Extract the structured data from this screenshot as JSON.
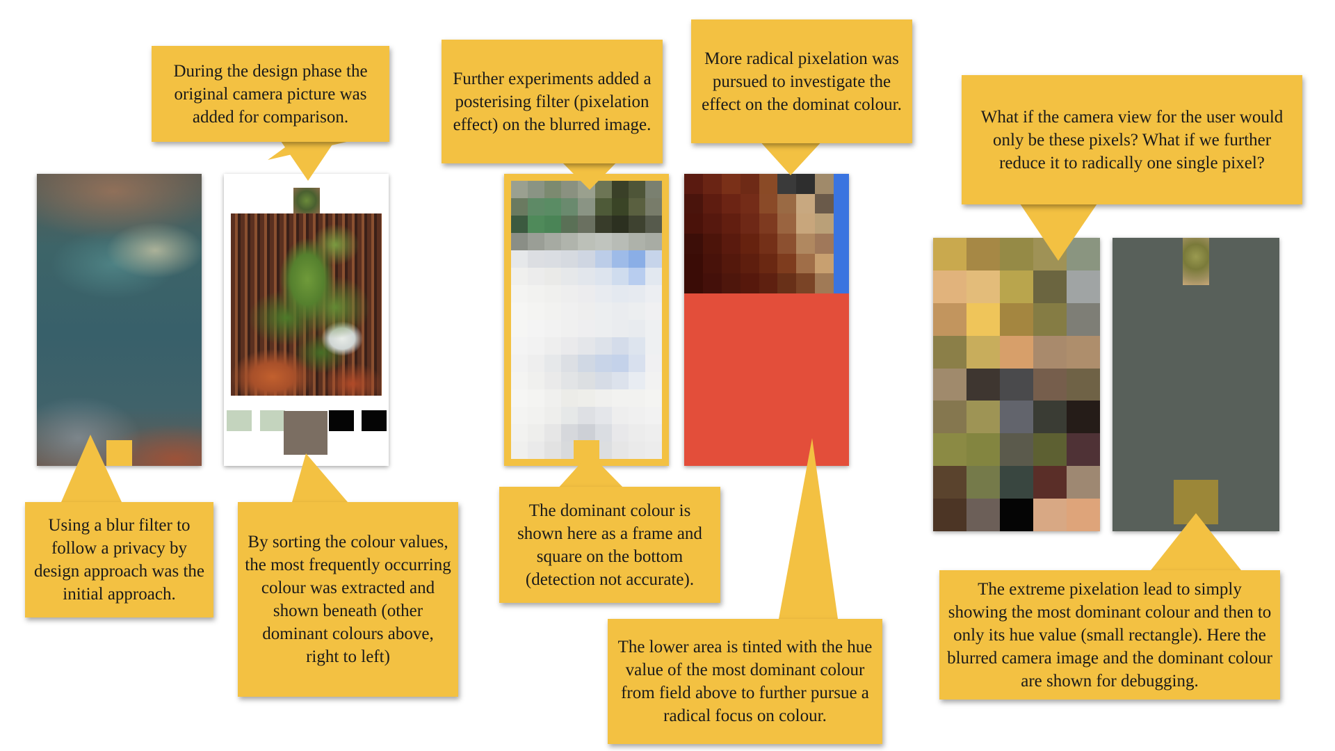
{
  "callouts": {
    "blur_filter": "Using a blur filter to follow a privacy by design approach was the initial approach.",
    "original_picture": "During the design phase the original camera picture was added for comparison.",
    "sorting_colours": "By sorting the colour values, the most frequently occurring colour was extracted and shown beneath (other dominant colours above, right to left)",
    "posterising": "Further experiments added a posterising filter (pixelation effect) on the blurred image.",
    "dominant_frame": "The dominant colour is shown here as a frame and square on the bottom (detection not accurate).",
    "radical_pixelation": "More radical pixelation was pursued to investigate the effect on the dominat colour.",
    "lower_area": "The lower area is tinted with the hue value of the most dominant colour from  field above to further pursue a radical focus on colour.",
    "single_pixel": "What if the camera view for the user would only be these pixels? What if we further reduce it to radically one single pixel?",
    "extreme_pixelation": "The extreme pixelation lead to simply showing the most dominant colour and then to only its hue value (small rectangle). Here the blurred camera image and the dominant colour are shown for debugging."
  },
  "colors": {
    "callout_bg": "#f3c142",
    "dominant_yellow": "#f3c142",
    "tint_red": "#e34e3a",
    "debug_grey": "#58605a",
    "debug_hue": "#9c8738",
    "side_blue": "#3a74e0"
  },
  "swatches": {
    "screen2": [
      "#c4d4be",
      "#c4d4be",
      "#7b6e62",
      "#050505",
      "#050505"
    ]
  },
  "grids": {
    "posterised": {
      "cols": 9,
      "rows": 16,
      "pixels": [
        "#9aa090",
        "#8a9484",
        "#7c8a70",
        "#8a9180",
        "#9aa08e",
        "#6d7555",
        "#3a4028",
        "#4e5538",
        "#7a8070",
        "#6a7a60",
        "#5e8a66",
        "#5a8c64",
        "#6a8a6e",
        "#8a9484",
        "#4e5a38",
        "#3a4426",
        "#5a6040",
        "#787c6a",
        "#3c5a40",
        "#4f8a5a",
        "#4a8456",
        "#5a7056",
        "#6a7060",
        "#383c2a",
        "#2c3020",
        "#3e4230",
        "#565a4c",
        "#8a8e86",
        "#9a9e96",
        "#a6aaa2",
        "#b0b4ac",
        "#bcc0b8",
        "#c0c4be",
        "#b8bcb6",
        "#aeb2aa",
        "#a8aca4",
        "#e6e8ea",
        "#dcdee2",
        "#dadde2",
        "#d6dae0",
        "#cfd6e2",
        "#bccde8",
        "#9ebbe8",
        "#8aaee6",
        "#c6d4ea",
        "#f0f0ee",
        "#ececec",
        "#eaeae8",
        "#e6e8ea",
        "#e2e6ec",
        "#dde4ee",
        "#cfdcee",
        "#b8cdef",
        "#e2e8f0",
        "#f4f4f2",
        "#f2f2f0",
        "#f0f0ee",
        "#eeeeee",
        "#ececee",
        "#e8ebf0",
        "#e4e9f0",
        "#e6eaf0",
        "#eceef2",
        "#f6f6f4",
        "#f4f4f2",
        "#f2f2f0",
        "#f0f0f0",
        "#eeeeee",
        "#eceef0",
        "#eaecef",
        "#eceef0",
        "#f0f0f2",
        "#f6f6f4",
        "#f4f4f4",
        "#f2f2f2",
        "#f0f0f0",
        "#eeeef0",
        "#eceef0",
        "#eaecef",
        "#e8ebef",
        "#eef0f2",
        "#f4f4f4",
        "#f2f2f2",
        "#eeeeee",
        "#eaeaec",
        "#e4e6ea",
        "#dde2ea",
        "#d4dcea",
        "#dde4ee",
        "#eef0f2",
        "#f2f2f2",
        "#eeeeee",
        "#e6e8ea",
        "#dcdfe4",
        "#d0d8e4",
        "#c8d4e8",
        "#c4d2ea",
        "#d8e0ee",
        "#f0f0f2",
        "#f4f4f2",
        "#f0f0ee",
        "#eaeaea",
        "#e2e4e6",
        "#dcdfe2",
        "#d6dce6",
        "#dce2ec",
        "#e8ecf2",
        "#f2f2f2",
        "#f6f6f4",
        "#f4f4f2",
        "#f0f0ee",
        "#ecece8",
        "#eeeeea",
        "#f0f0ee",
        "#f2f2f0",
        "#f2f2f0",
        "#f4f4f2",
        "#f4f4f2",
        "#f2f2f0",
        "#eeeeec",
        "#e6e8e8",
        "#dee0e4",
        "#e4e6ea",
        "#eeeeee",
        "#f0f0f0",
        "#f2f2f2",
        "#f2f2f0",
        "#eeeeec",
        "#e6e6e6",
        "#d6d8dc",
        "#cdd0d6",
        "#dadde2",
        "#e8e8ea",
        "#ececec",
        "#eeeeee",
        "#f0f0ee",
        "#eaeaea",
        "#e2e2e2",
        "#d8dadc",
        "#d0d2d6",
        "#dcdee0",
        "#e6e6e6",
        "#eaeaea",
        "#ececec"
      ]
    },
    "radical": {
      "cols": 8,
      "rows": 6,
      "pixels": [
        "#5a1a10",
        "#6a2414",
        "#7a3018",
        "#6e2a16",
        "#8a4a26",
        "#3a3a3a",
        "#2e2e2e",
        "#a08a6a",
        "#4a140c",
        "#5e1c10",
        "#6c2414",
        "#742c18",
        "#8a4a28",
        "#9a6a44",
        "#c8a880",
        "#6a5a4a",
        "#4a120a",
        "#56180e",
        "#621e10",
        "#6e2816",
        "#7e3a20",
        "#9a6440",
        "#c8a67c",
        "#baa078",
        "#3c0e08",
        "#4c140a",
        "#5a1a0e",
        "#66220f",
        "#743018",
        "#8c5030",
        "#b08860",
        "#a0785a",
        "#3a0c06",
        "#48120a",
        "#54180c",
        "#5e1e0e",
        "#6a2812",
        "#7e3c1e",
        "#a06e48",
        "#c8a070",
        "#3a0c06",
        "#44100a",
        "#4e160c",
        "#56180c",
        "#5e2010",
        "#683018",
        "#7a4426",
        "#a07a56"
      ]
    },
    "single": {
      "cols": 5,
      "rows": 9,
      "pixels": [
        "#c9a94e",
        "#a68845",
        "#958a46",
        "#9f9256",
        "#8a9580",
        "#e1b37c",
        "#e3bc7a",
        "#b9a54d",
        "#6b6540",
        "#a0a4a4",
        "#c2955e",
        "#efc55a",
        "#a48640",
        "#857c44",
        "#7e7e76",
        "#8b7f48",
        "#c8ad5c",
        "#d79f6a",
        "#a98a6c",
        "#ae8e6c",
        "#a08a6c",
        "#3e3630",
        "#4a4a4c",
        "#765e4c",
        "#6f6246",
        "#85774f",
        "#9e9455",
        "#62646c",
        "#3a3c34",
        "#251c18",
        "#8b8a44",
        "#838540",
        "#5b5a4c",
        "#5d6032",
        "#4f3236",
        "#5a432d",
        "#757a4a",
        "#394640",
        "#5a2e28",
        "#9e8872",
        "#4c3525",
        "#6c5f58",
        "#050505",
        "#d8a884",
        "#dea47a"
      ]
    }
  }
}
